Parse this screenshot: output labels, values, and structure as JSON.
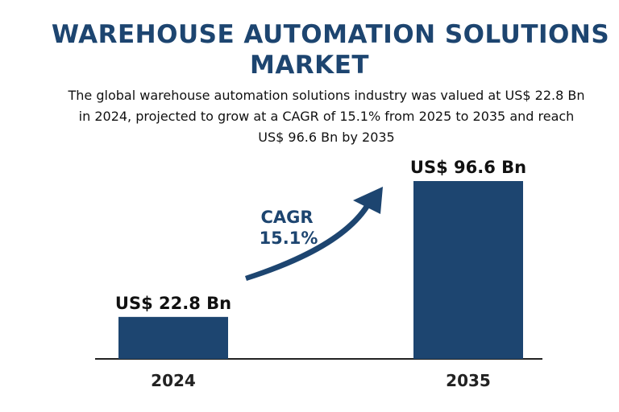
{
  "title_lines": [
    "WAREHOUSE AUTOMATION SOLUTIONS",
    "MARKET"
  ],
  "subtitle_lines": [
    "The global warehouse automation solutions industry was valued at US$ 22.8 Bn",
    "in 2024, projected to grow at a CAGR of 15.1% from 2025 to 2035 and reach",
    "US$ 96.6 Bn by 2035"
  ],
  "colors": {
    "bar": "#1d4570",
    "text": "#1d4570",
    "axis": "#222222"
  },
  "chart_data": {
    "type": "bar",
    "categories": [
      "2024",
      "2035"
    ],
    "values": [
      22.8,
      96.6
    ],
    "value_labels": [
      "US$ 22.8 Bn",
      "US$ 96.6 Bn"
    ],
    "unit": "US$ Bn",
    "ylim": [
      0,
      100
    ],
    "grid": false,
    "annotation": {
      "lines": [
        "CAGR",
        "15.1%"
      ],
      "icon": "curved-arrow-icon"
    }
  }
}
